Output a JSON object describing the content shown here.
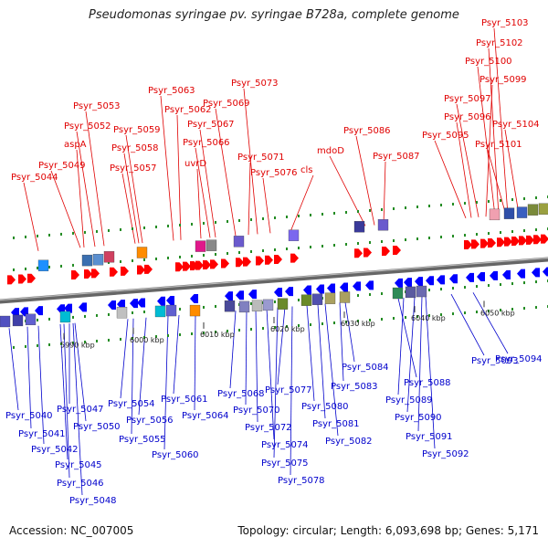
{
  "title": "Pseudomonas syringae pv. syringae B728a, complete genome",
  "footer": {
    "accession": "Accession: NC_007005",
    "stats": "Topology: circular; Length: 6,093,698 bp; Genes: 5,171"
  },
  "colors": {
    "top_label": "#e00000",
    "bottom_label": "#0000cc",
    "top_arrow": "#ff0000",
    "bottom_arrow": "#0000ff",
    "backbone": "#888888",
    "tick": "#228b22"
  },
  "scale_ticks": [
    "5990 kbp",
    "6000 kbp",
    "6010 kbp",
    "6020 kbp",
    "6030 kbp",
    "6040 kbp",
    "6050 kbp"
  ],
  "top_genes": [
    "Psyr_5044",
    "Psyr_5049",
    "aspA",
    "Psyr_5052",
    "Psyr_5053",
    "Psyr_5057",
    "Psyr_5058",
    "Psyr_5059",
    "Psyr_5062",
    "Psyr_5063",
    "uvrD",
    "Psyr_5066",
    "Psyr_5067",
    "Psyr_5069",
    "Psyr_5071",
    "Psyr_5073",
    "Psyr_5076",
    "cls",
    "mdoD",
    "Psyr_5086",
    "Psyr_5087",
    "Psyr_5095",
    "Psyr_5096",
    "Psyr_5097",
    "Psyr_5099",
    "Psyr_5100",
    "Psyr_5101",
    "Psyr_5102",
    "Psyr_5103",
    "Psyr_5104"
  ],
  "bottom_genes": [
    "Psyr_5040",
    "Psyr_5041",
    "Psyr_5042",
    "Psyr_5045",
    "Psyr_5046",
    "Psyr_5047",
    "Psyr_5048",
    "Psyr_5050",
    "Psyr_5054",
    "Psyr_5055",
    "Psyr_5056",
    "Psyr_5060",
    "Psyr_5061",
    "Psyr_5064",
    "Psyr_5068",
    "Psyr_5070",
    "Psyr_5072",
    "Psyr_5074",
    "Psyr_5075",
    "Psyr_5077",
    "Psyr_5078",
    "Psyr_5080",
    "Psyr_5081",
    "Psyr_5082",
    "Psyr_5083",
    "Psyr_5084",
    "Psyr_5088",
    "Psyr_5089",
    "Psyr_5090",
    "Psyr_5091",
    "Psyr_5092",
    "Psyr_5093",
    "Psyr_5094"
  ]
}
